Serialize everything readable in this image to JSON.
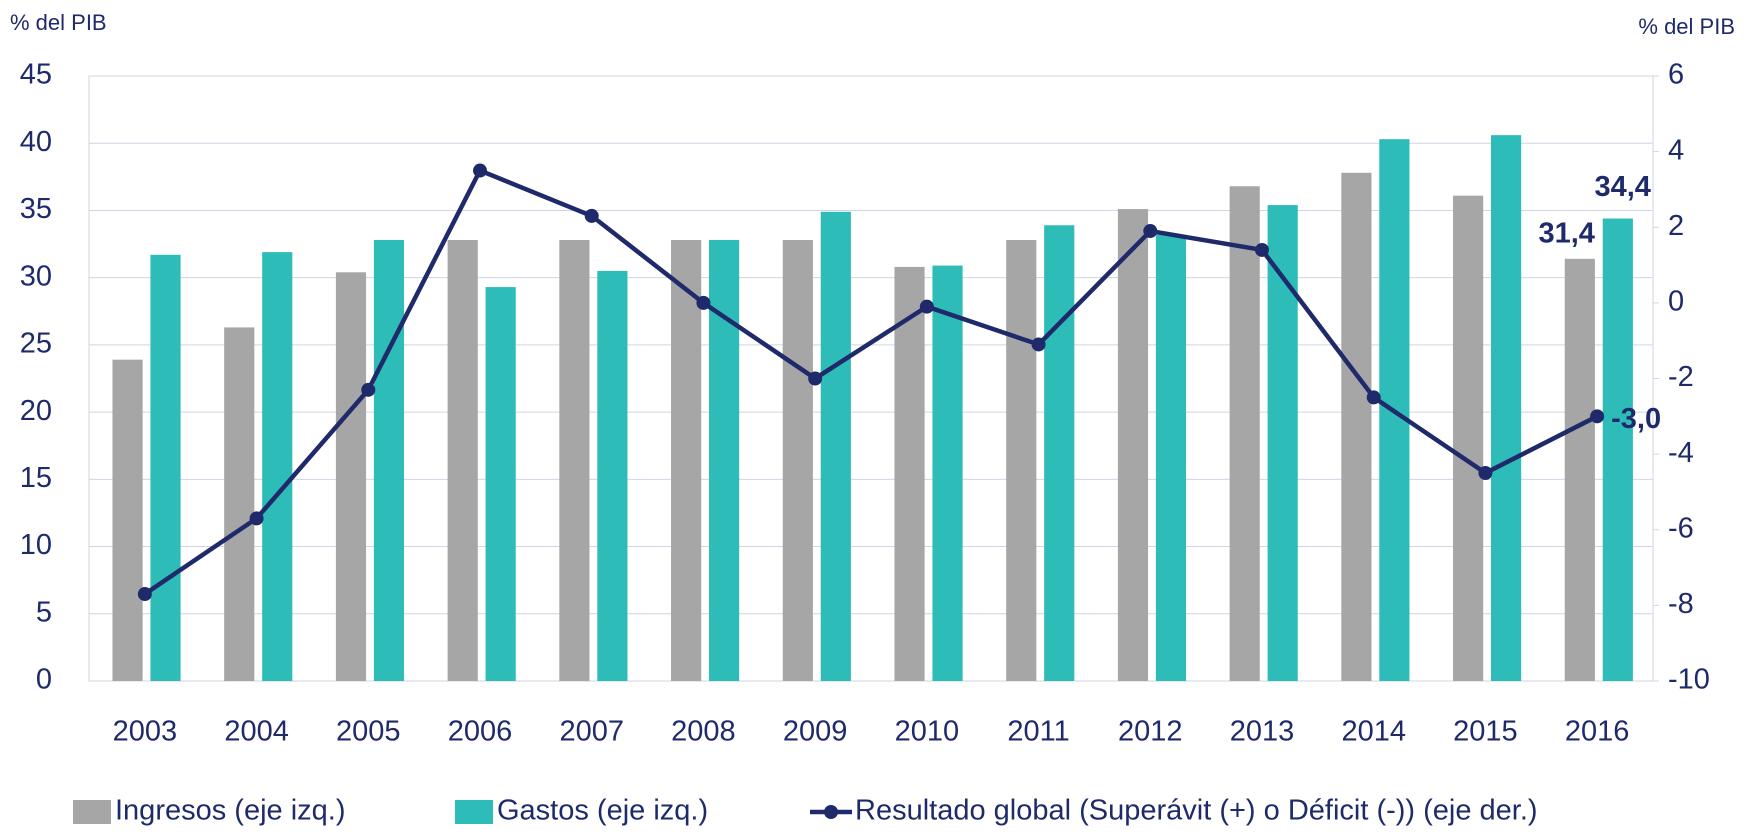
{
  "chart_data": {
    "type": "bar-line",
    "y_label": "% del PIB",
    "y2_label": "% del PIB",
    "categories": [
      "2003",
      "2004",
      "2005",
      "2006",
      "2007",
      "2008",
      "2009",
      "2010",
      "2011",
      "2012",
      "2013",
      "2014",
      "2015",
      "2016"
    ],
    "series": [
      {
        "name": "Ingresos (eje izq.)",
        "type": "bar",
        "color": "#a6a6a6",
        "values": [
          23.9,
          26.3,
          30.4,
          32.8,
          32.8,
          32.8,
          32.8,
          30.8,
          32.8,
          35.1,
          36.8,
          37.8,
          36.1,
          31.4
        ],
        "value_labels": [
          null,
          null,
          null,
          null,
          null,
          null,
          null,
          null,
          null,
          null,
          null,
          null,
          null,
          "31,4"
        ]
      },
      {
        "name": "Gastos (eje izq.)",
        "type": "bar",
        "color": "#2ebcb8",
        "values": [
          31.7,
          31.9,
          32.8,
          29.3,
          30.5,
          32.8,
          34.9,
          30.9,
          33.9,
          33.2,
          35.4,
          40.3,
          40.6,
          34.4
        ],
        "value_labels": [
          null,
          null,
          null,
          null,
          null,
          null,
          null,
          null,
          null,
          null,
          null,
          null,
          null,
          "34,4"
        ]
      },
      {
        "name": "Resultado global (Superávit (+) o Déficit (-)) (eje der.)",
        "type": "line",
        "axis": "y2",
        "color": "#1f2a6b",
        "values": [
          -7.7,
          -5.7,
          -2.3,
          3.5,
          2.3,
          0.0,
          -2.0,
          -0.1,
          -1.1,
          1.9,
          1.4,
          -2.5,
          -4.5,
          -3.0
        ],
        "value_labels": [
          null,
          null,
          null,
          null,
          null,
          null,
          null,
          null,
          null,
          null,
          null,
          null,
          null,
          "-3,0"
        ]
      }
    ],
    "ylim": [
      0,
      45
    ],
    "yticks": [
      0,
      5,
      10,
      15,
      20,
      25,
      30,
      35,
      40,
      45
    ],
    "y2lim": [
      -10,
      6
    ],
    "y2ticks": [
      -10,
      -8,
      -6,
      -4,
      -2,
      0,
      2,
      4,
      6
    ],
    "grid": true,
    "legend": "bottom"
  }
}
